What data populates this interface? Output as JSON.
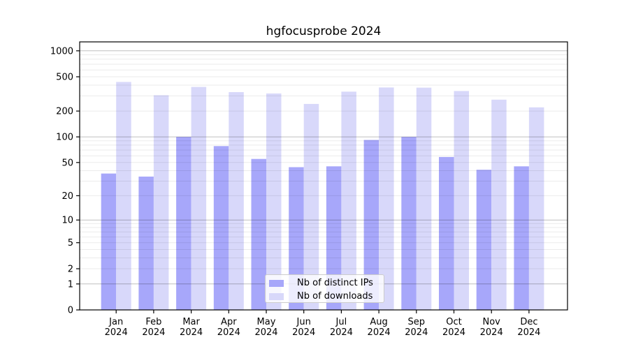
{
  "title": "hgfocusprobe 2024",
  "chart_data": {
    "type": "bar",
    "title": "hgfocusprobe 2024",
    "y_scale": "log10(value+1)",
    "ylim": [
      0,
      1285
    ],
    "y_ticks": [
      0,
      1,
      2,
      5,
      10,
      20,
      50,
      100,
      200,
      500,
      1000
    ],
    "grid": true,
    "legend_position": "lower center inside plot",
    "year_label": "2024",
    "month_labels": [
      "Jan",
      "Feb",
      "Mar",
      "Apr",
      "May",
      "Jun",
      "Jul",
      "Aug",
      "Sep",
      "Oct",
      "Nov",
      "Dec"
    ],
    "categories": [
      "Jan 2024",
      "Feb 2024",
      "Mar 2024",
      "Apr 2024",
      "May 2024",
      "Jun 2024",
      "Jul 2024",
      "Aug 2024",
      "Sep 2024",
      "Oct 2024",
      "Nov 2024",
      "Dec 2024"
    ],
    "series": [
      {
        "name": "Nb of distinct IPs",
        "color": "#a7a7fa",
        "values": [
          37,
          34,
          100,
          78,
          55,
          44,
          45,
          92,
          100,
          58,
          41,
          45
        ]
      },
      {
        "name": "Nb of downloads",
        "color": "#d8d8fa",
        "values": [
          436,
          305,
          382,
          332,
          320,
          242,
          336,
          376,
          374,
          342,
          271,
          221
        ]
      }
    ],
    "colors": {
      "frame": "#000000",
      "major_grid": "#c3c3c3",
      "minor_grid": "#ebebeb",
      "legend_border": "#cccccc"
    }
  }
}
